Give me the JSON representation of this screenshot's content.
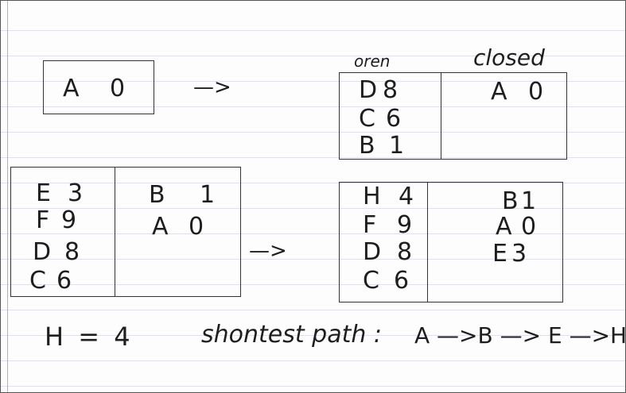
{
  "step1": {
    "start": {
      "node": "A",
      "cost": "0"
    },
    "arrow": "—>",
    "open_label": "oren",
    "closed_label": "closed",
    "open": [
      {
        "node": "D",
        "cost": "8"
      },
      {
        "node": "C",
        "cost": "6"
      },
      {
        "node": "B",
        "cost": "1"
      }
    ],
    "closed": [
      {
        "node": "A",
        "cost": "0"
      }
    ]
  },
  "step2": {
    "before_open": [
      {
        "node": "E",
        "cost": "3"
      },
      {
        "node": "F",
        "cost": "9"
      },
      {
        "node": "D",
        "cost": "8"
      },
      {
        "node": "C",
        "cost": "6"
      }
    ],
    "before_closed": [
      {
        "node": "B",
        "cost": "1"
      },
      {
        "node": "A",
        "cost": "0"
      }
    ],
    "arrow": "—>",
    "after_open": [
      {
        "node": "H",
        "cost": "4"
      },
      {
        "node": "F",
        "cost": "9"
      },
      {
        "node": "D",
        "cost": "8"
      },
      {
        "node": "C",
        "cost": "6"
      }
    ],
    "after_closed": [
      {
        "node": "B",
        "cost": "1"
      },
      {
        "node": "A",
        "cost": "0"
      },
      {
        "node": "E",
        "cost": "3"
      }
    ]
  },
  "footer": {
    "h_value": "H = 4",
    "shortest_label": "shontest path :",
    "path": "A —>B —> E —>H"
  }
}
